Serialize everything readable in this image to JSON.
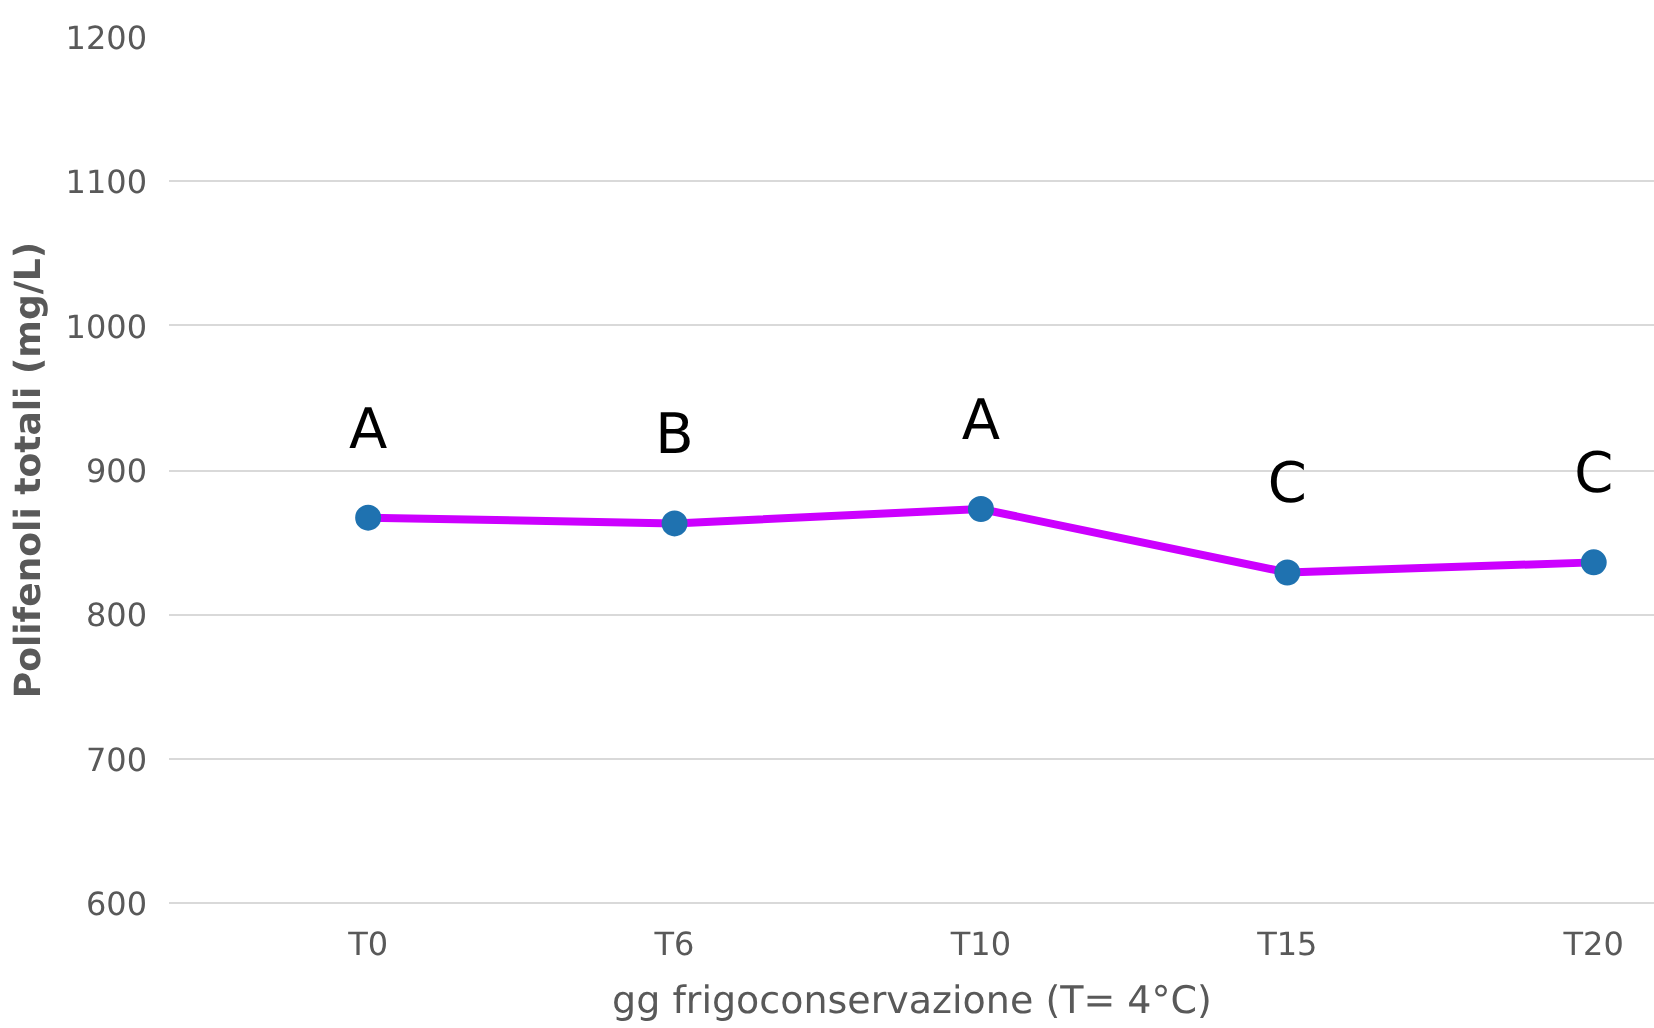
{
  "chart_data": {
    "type": "line",
    "xlabel": "gg frigoconservazione (T= 4°C)",
    "ylabel": "Polifenoli totali (mg/L)",
    "categories": [
      "T0",
      "T6",
      "T10",
      "T15",
      "T20"
    ],
    "series": [
      {
        "color": "#cc00ff",
        "colors": [
          "#1f72b0",
          "#1f72b0",
          "#1f72b0",
          "#1f72b0",
          "#1f72b0"
        ],
        "values": [
          867,
          863,
          873,
          829,
          836
        ]
      }
    ],
    "ylim": [
      600,
      1200
    ],
    "yticks": [
      600,
      700,
      800,
      900,
      1000,
      1100,
      1200
    ],
    "grid": "y",
    "marker": "circle",
    "line_style": "solid",
    "annotations": [
      "A",
      "B",
      "A",
      "C",
      "C"
    ]
  }
}
